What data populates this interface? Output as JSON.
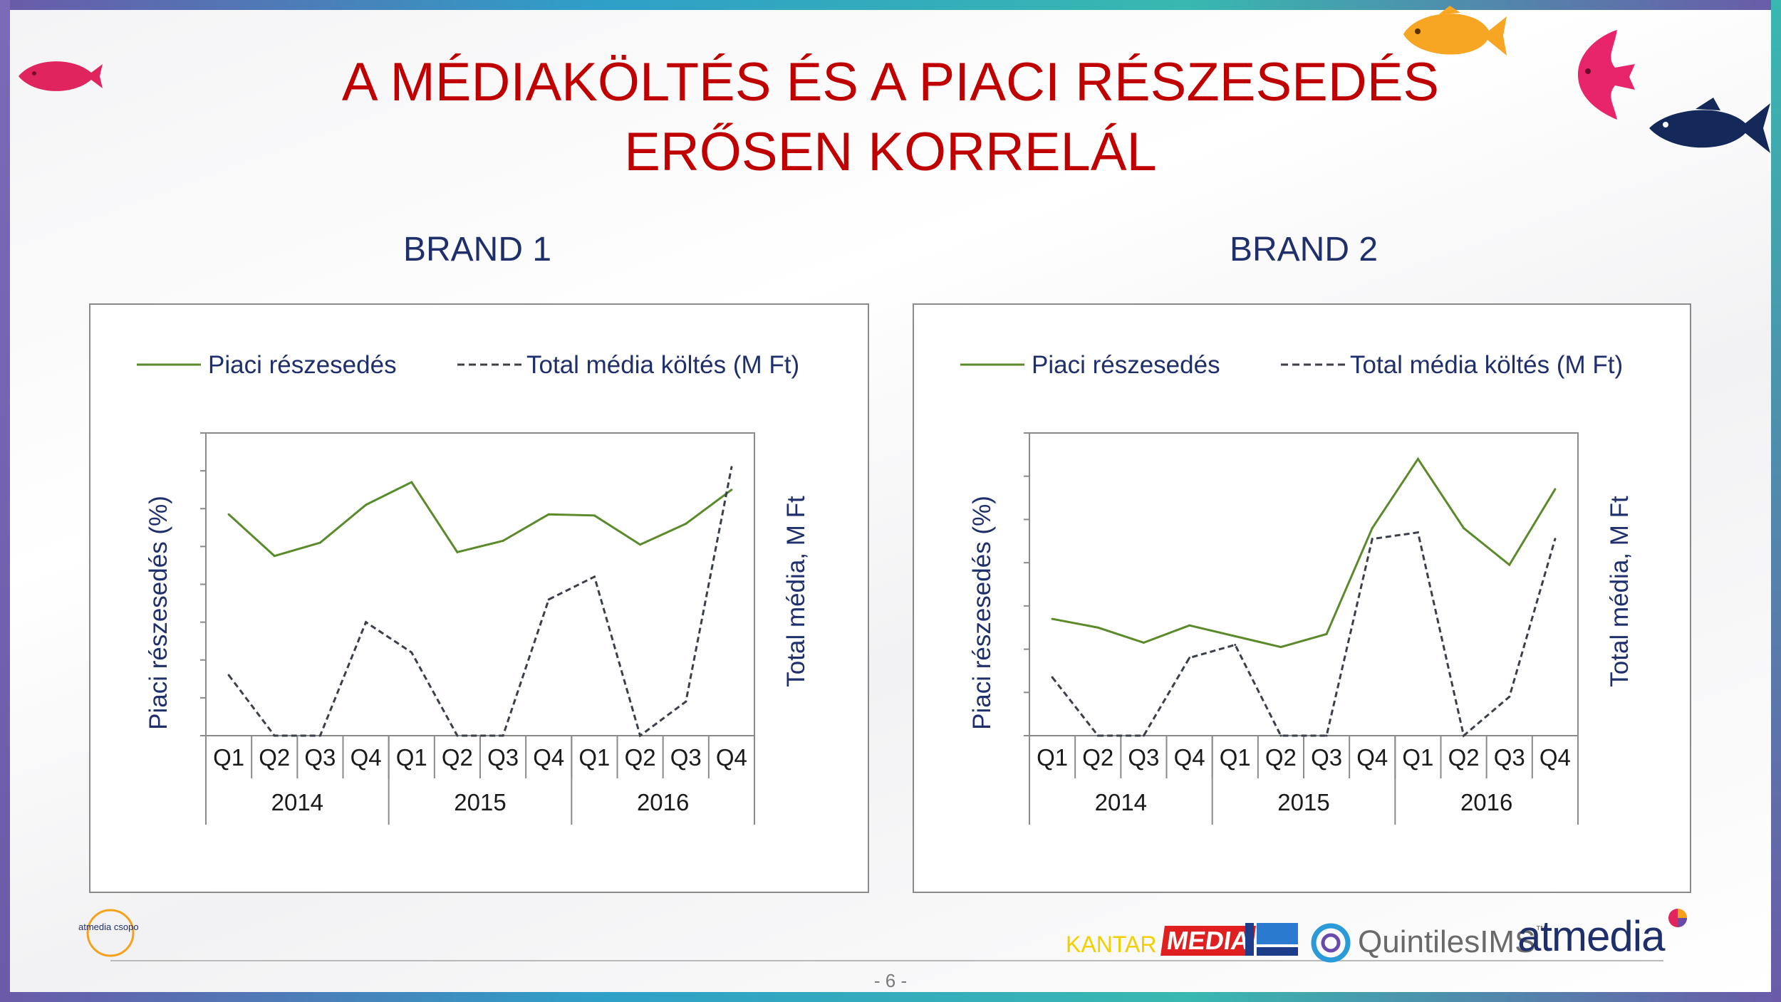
{
  "title": {
    "line1": "A MÉDIAKÖLTÉS ÉS A PIACI RÉSZESEDÉS",
    "line2": "ERŐSEN KORRELÁL"
  },
  "page_number": "- 6 -",
  "colors": {
    "title": "#c00000",
    "brand": "#1f2f6b",
    "market_share": "#5a8a2a",
    "media_spend": "#3a3f4a"
  },
  "logos": {
    "atmedia_csoport": "atmedia csoport",
    "kantar": "KANTAR",
    "media": "MEDIA",
    "quintiles": "QuintilesIMS",
    "quintiles_tm": "™",
    "atmedia": "atmedia"
  },
  "decor_icons": [
    "red-fish-icon",
    "orange-fish-icon",
    "pink-angelfish-icon",
    "navy-fish-icon"
  ],
  "chart_data": [
    {
      "type": "line",
      "title": "BRAND 1",
      "ylabel": "Piaci részesedés (%)",
      "y2label": "Total média,  M Ft",
      "categories": [
        "Q1",
        "Q2",
        "Q3",
        "Q4",
        "Q1",
        "Q2",
        "Q3",
        "Q4",
        "Q1",
        "Q2",
        "Q3",
        "Q4"
      ],
      "groups": [
        {
          "label": "2014",
          "span": 4
        },
        {
          "label": "2015",
          "span": 4
        },
        {
          "label": "2016",
          "span": 4
        }
      ],
      "ylim": [
        0,
        8
      ],
      "y2lim": [
        0,
        8
      ],
      "legend_position": "top",
      "series": [
        {
          "name": "Piaci részesedés",
          "axis": "left",
          "style": "solid",
          "values": [
            5.85,
            4.75,
            5.1,
            6.1,
            6.7,
            4.85,
            5.15,
            5.85,
            5.82,
            5.05,
            5.6,
            6.5
          ]
        },
        {
          "name": "Total média költés (M Ft)",
          "axis": "right",
          "style": "dashed",
          "values": [
            1.6,
            0,
            0,
            3.0,
            2.2,
            0,
            0,
            3.6,
            4.2,
            0,
            0.9,
            7.1
          ]
        }
      ]
    },
    {
      "type": "line",
      "title": "BRAND 2",
      "ylabel": "Piaci részesedés (%)",
      "y2label": "Total média,  M Ft",
      "categories": [
        "Q1",
        "Q2",
        "Q3",
        "Q4",
        "Q1",
        "Q2",
        "Q3",
        "Q4",
        "Q1",
        "Q2",
        "Q3",
        "Q4"
      ],
      "groups": [
        {
          "label": "2014",
          "span": 4
        },
        {
          "label": "2015",
          "span": 4
        },
        {
          "label": "2016",
          "span": 4
        }
      ],
      "ylim": [
        0,
        7
      ],
      "y2lim": [
        0,
        7
      ],
      "legend_position": "top",
      "series": [
        {
          "name": "Piaci részesedés",
          "axis": "left",
          "style": "solid",
          "values": [
            2.7,
            2.5,
            2.15,
            2.55,
            2.3,
            2.05,
            2.35,
            4.8,
            6.4,
            4.8,
            3.95,
            5.7
          ]
        },
        {
          "name": "Total média költés (M Ft)",
          "axis": "right",
          "style": "dashed",
          "values": [
            1.35,
            0,
            0,
            1.8,
            2.1,
            0,
            0,
            4.55,
            4.7,
            0,
            0.9,
            4.55
          ]
        }
      ]
    }
  ]
}
